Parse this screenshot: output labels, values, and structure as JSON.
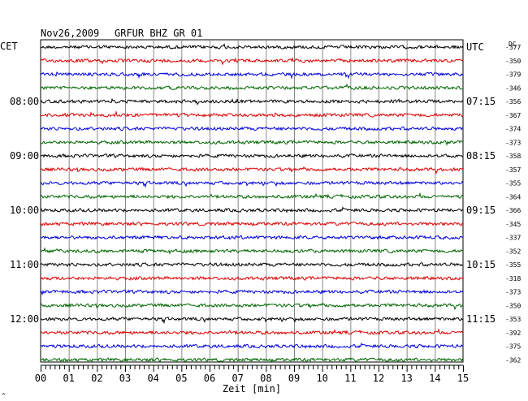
{
  "header": {
    "date": "Nov26,2009",
    "station": "GRFUR BHZ GR 01"
  },
  "left_tz": "CET",
  "right_tz": "UTC",
  "dc_label": "DC",
  "footer_mark": "^",
  "chart_data": {
    "type": "line",
    "title": "Nov26,2009   GRFUR BHZ GR 01",
    "xlabel": "Zeit [min]",
    "xlim": [
      0,
      15
    ],
    "x_ticks": [
      "00",
      "01",
      "02",
      "03",
      "04",
      "05",
      "06",
      "07",
      "08",
      "09",
      "10",
      "11",
      "12",
      "13",
      "14",
      "15"
    ],
    "left_time_labels": [
      {
        "row": 4,
        "label": "08:00"
      },
      {
        "row": 8,
        "label": "09:00"
      },
      {
        "row": 12,
        "label": "10:00"
      },
      {
        "row": 16,
        "label": "11:00"
      },
      {
        "row": 20,
        "label": "12:00"
      }
    ],
    "right_time_labels": [
      {
        "row": 0,
        "label": "UTC"
      },
      {
        "row": 4,
        "label": "07:15"
      },
      {
        "row": 8,
        "label": "08:15"
      },
      {
        "row": 12,
        "label": "09:15"
      },
      {
        "row": 16,
        "label": "10:15"
      },
      {
        "row": 20,
        "label": "11:15"
      }
    ],
    "dc_offsets": [
      -377,
      -350,
      -379,
      -346,
      -356,
      -367,
      -374,
      -373,
      -358,
      -357,
      -355,
      -364,
      -366,
      -345,
      -337,
      -352,
      -355,
      -318,
      -373,
      -350,
      -353,
      -392,
      -375,
      -362
    ],
    "trace_colors": [
      "#000000",
      "#dd0000",
      "#0000dd",
      "#006600"
    ],
    "grid": true
  }
}
